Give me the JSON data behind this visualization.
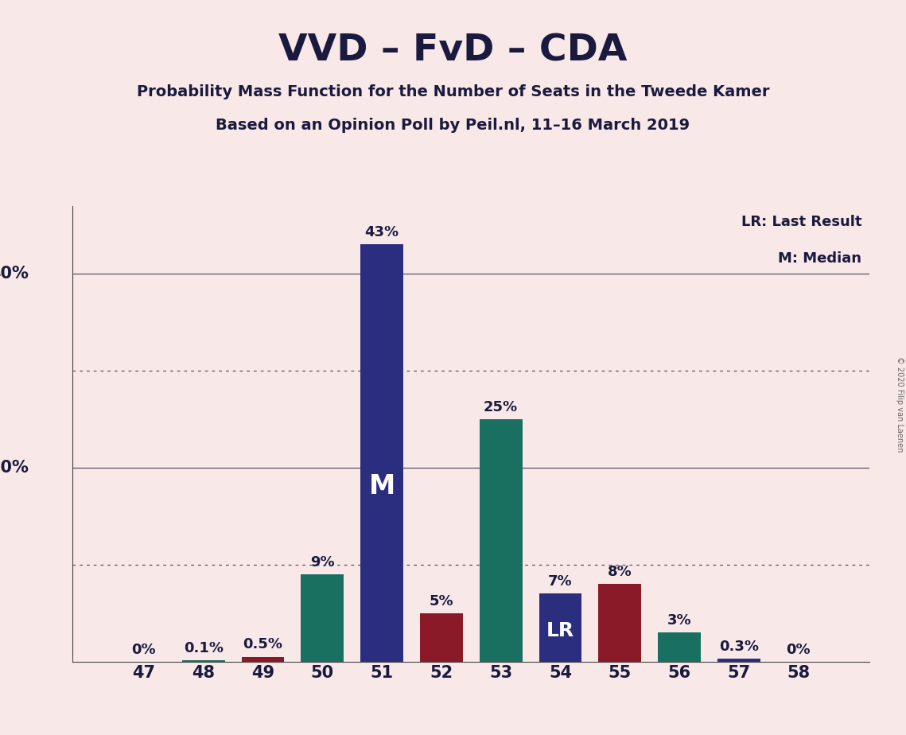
{
  "title": "VVD – FvD – CDA",
  "subtitle1": "Probability Mass Function for the Number of Seats in the Tweede Kamer",
  "subtitle2": "Based on an Opinion Poll by Peil.nl, 11–16 March 2019",
  "copyright": "© 2020 Filip van Laenen",
  "legend_lr": "LR: Last Result",
  "legend_m": "M: Median",
  "seats": [
    47,
    48,
    49,
    50,
    51,
    52,
    53,
    54,
    55,
    56,
    57,
    58
  ],
  "values": [
    0.0,
    0.1,
    0.5,
    9.0,
    43.0,
    5.0,
    25.0,
    7.0,
    8.0,
    3.0,
    0.3,
    0.0
  ],
  "labels": [
    "0%",
    "0.1%",
    "0.5%",
    "9%",
    "43%",
    "5%",
    "25%",
    "7%",
    "8%",
    "3%",
    "0.3%",
    "0%"
  ],
  "bar_colors": [
    "#1a7060",
    "#1a7060",
    "#8b1a28",
    "#1a7060",
    "#2b2d7e",
    "#8b1a28",
    "#1a7060",
    "#2b2d7e",
    "#8b1a28",
    "#1a7060",
    "#2b2d7e",
    "#2b2d7e"
  ],
  "median_seat": 51,
  "lr_seat": 54,
  "background_color": "#f9e8e8",
  "ylim": [
    0,
    47
  ],
  "dotted_lines": [
    10,
    30
  ],
  "solid_lines": [
    20,
    40
  ],
  "bar_width": 0.72
}
